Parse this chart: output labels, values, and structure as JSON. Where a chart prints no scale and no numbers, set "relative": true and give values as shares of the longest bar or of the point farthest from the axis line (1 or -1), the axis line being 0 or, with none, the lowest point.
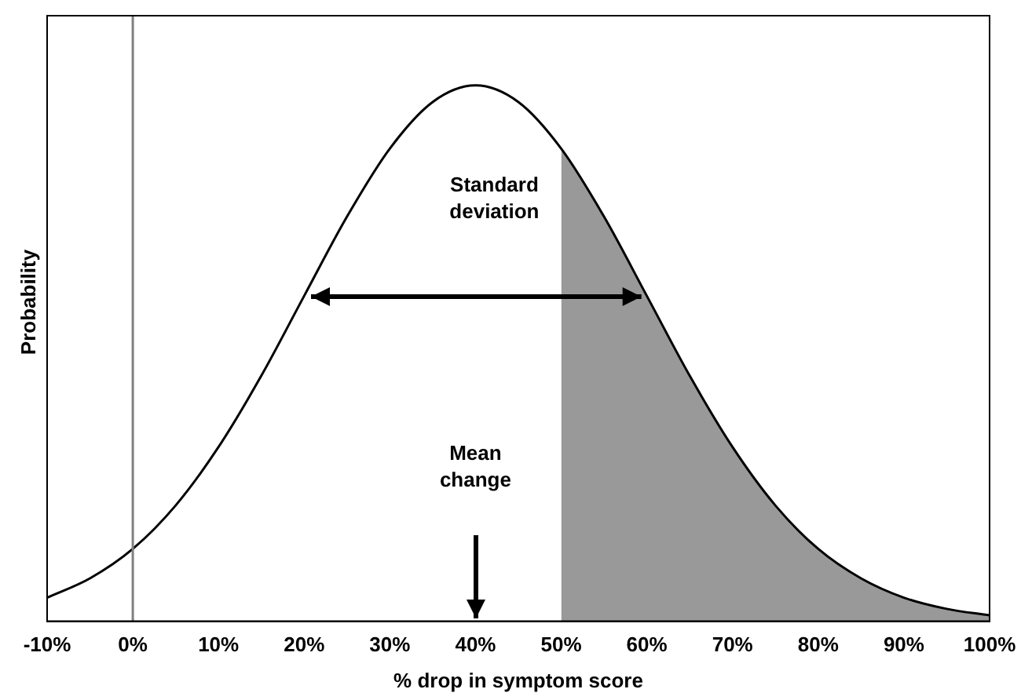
{
  "chart_data": {
    "type": "line",
    "relative": true,
    "xlabel": "% drop in symptom score",
    "ylabel": "Probability",
    "x": [
      -10,
      -5,
      0,
      5,
      10,
      15,
      20,
      25,
      30,
      35,
      40,
      45,
      50,
      55,
      60,
      65,
      70,
      75,
      80,
      85,
      90,
      95,
      100
    ],
    "series": [
      {
        "type": "line",
        "color": "#000000",
        "values": [
          0.044,
          0.08,
          0.135,
          0.216,
          0.325,
          0.458,
          0.607,
          0.755,
          0.882,
          0.969,
          1,
          0.969,
          0.882,
          0.755,
          0.607,
          0.458,
          0.325,
          0.216,
          0.135,
          0.08,
          0.044,
          0.023,
          0.011
        ]
      },
      {
        "type": "area",
        "color": "#999999",
        "x": [
          50,
          55,
          60,
          65,
          70,
          75,
          80,
          85,
          90,
          95,
          100
        ],
        "values": [
          0.882,
          0.755,
          0.607,
          0.458,
          0.325,
          0.216,
          0.135,
          0.08,
          0.044,
          0.023,
          0.011
        ]
      }
    ],
    "xlim": [
      -10,
      100
    ],
    "xticks": [
      {
        "value": -10,
        "label": "-10%"
      },
      {
        "value": 0,
        "label": "0%"
      },
      {
        "value": 10,
        "label": "10%"
      },
      {
        "value": 20,
        "label": "20%"
      },
      {
        "value": 30,
        "label": "30%"
      },
      {
        "value": 40,
        "label": "40%"
      },
      {
        "value": 50,
        "label": "50%"
      },
      {
        "value": 60,
        "label": "60%"
      },
      {
        "value": 70,
        "label": "70%"
      },
      {
        "value": 80,
        "label": "80%"
      },
      {
        "value": 90,
        "label": "90%"
      },
      {
        "value": 100,
        "label": "100%"
      }
    ],
    "ref_lines": [
      {
        "axis": "x",
        "value": 0,
        "color": "#808080"
      }
    ],
    "annotations": [
      "Standard deviation",
      "Mean change"
    ],
    "grid": false,
    "legend": false,
    "marker": "none",
    "line_style": "solid"
  }
}
